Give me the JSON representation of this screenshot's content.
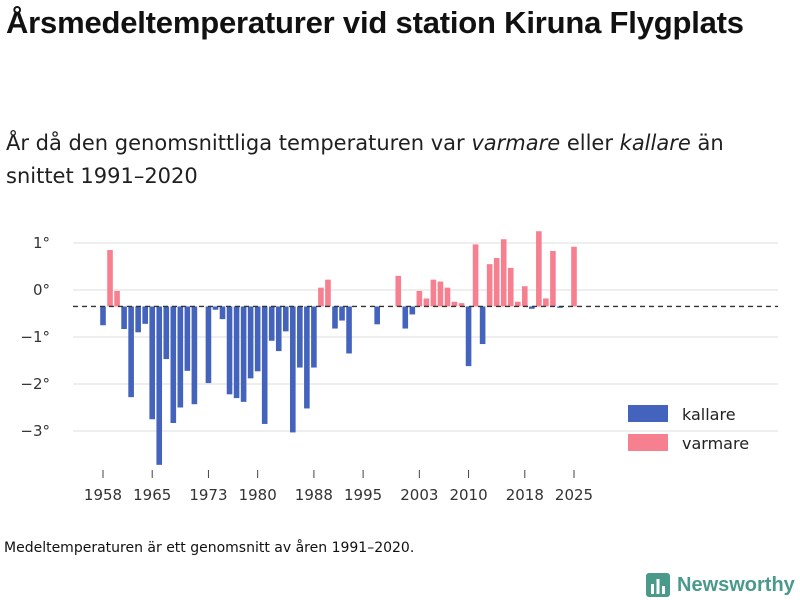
{
  "title": "Årsmedeltemperaturer vid station Kiruna Flygplats",
  "subtitle": {
    "part1": "År då den genomsnittliga temperaturen var ",
    "warm_word": "varmare",
    "part2": " eller ",
    "cold_word": "kallare",
    "part3": " än snittet 1991–2020"
  },
  "footnote": "Medeltemperaturen är ett genomsnitt av åren 1991–2020.",
  "brand": {
    "name": "Newsworthy",
    "icon": "bar-chart-logo-icon"
  },
  "colors": {
    "colder": "#4363bd",
    "warmer": "#f6808f",
    "grid": "#dddddd",
    "reference": "#333333",
    "brand": "#4a9a8c"
  },
  "chart_data": {
    "type": "bar",
    "title": "Årsmedeltemperaturer vid station Kiruna Flygplats",
    "xlabel": "",
    "ylabel": "",
    "baseline": -0.35,
    "ylim": [
      -3.7,
      1.35
    ],
    "yticks": [
      1,
      0,
      -1,
      -2,
      -3
    ],
    "ytick_labels": [
      "1°",
      "0°",
      "−1°",
      "−2°",
      "−3°"
    ],
    "xticks": [
      1958,
      1965,
      1973,
      1980,
      1988,
      1995,
      2003,
      2010,
      2018,
      2025
    ],
    "legend": {
      "position": "bottom-right",
      "items": [
        {
          "key": "colder",
          "label": "kallare"
        },
        {
          "key": "warmer",
          "label": "varmare"
        }
      ]
    },
    "years": [
      1958,
      1959,
      1960,
      1961,
      1962,
      1963,
      1964,
      1965,
      1966,
      1967,
      1968,
      1969,
      1970,
      1971,
      1972,
      1973,
      1974,
      1975,
      1976,
      1977,
      1978,
      1979,
      1980,
      1981,
      1982,
      1983,
      1984,
      1985,
      1986,
      1987,
      1988,
      1989,
      1990,
      1991,
      1992,
      1993,
      1994,
      1995,
      1996,
      1997,
      1998,
      1999,
      2000,
      2001,
      2002,
      2003,
      2004,
      2005,
      2006,
      2007,
      2008,
      2009,
      2010,
      2011,
      2012,
      2013,
      2014,
      2015,
      2016,
      2017,
      2018,
      2019,
      2020,
      2021,
      2022,
      2023,
      2024,
      2025
    ],
    "values": [
      -0.75,
      0.85,
      -0.02,
      -0.83,
      -2.28,
      -0.9,
      -0.72,
      -2.75,
      -3.72,
      -1.47,
      -2.83,
      -2.5,
      -1.72,
      -2.43,
      null,
      -1.98,
      -0.42,
      -0.62,
      -2.22,
      -2.3,
      -2.38,
      -1.88,
      -1.73,
      -2.85,
      -1.08,
      -1.3,
      -0.88,
      -3.03,
      -1.65,
      -2.52,
      -1.65,
      0.05,
      0.22,
      -0.82,
      -0.65,
      -1.35,
      null,
      null,
      null,
      -0.73,
      null,
      null,
      0.3,
      -0.82,
      -0.52,
      -0.02,
      -0.18,
      0.22,
      0.18,
      0.05,
      -0.25,
      -0.28,
      -1.62,
      0.97,
      -1.15,
      0.55,
      0.68,
      1.08,
      0.47,
      -0.25,
      0.08,
      -0.4,
      1.25,
      -0.18,
      0.83,
      -0.38,
      null,
      0.92
    ]
  }
}
